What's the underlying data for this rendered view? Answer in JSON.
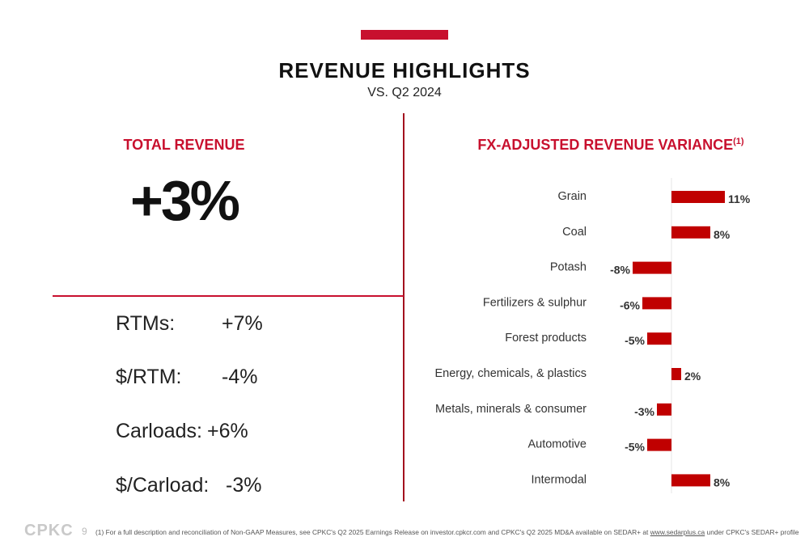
{
  "header": {
    "title": "REVENUE HIGHLIGHTS",
    "subtitle": "VS. Q2 2024"
  },
  "total_revenue": {
    "label": "TOTAL REVENUE",
    "value": "+3%"
  },
  "metrics": [
    {
      "label": "RTMs:",
      "value": "+7%"
    },
    {
      "label": "$/RTM:",
      "value": "-4%"
    },
    {
      "label": "Carloads:",
      "value": "+6%"
    },
    {
      "label": "$/Carload:",
      "value": "-3%"
    }
  ],
  "chart_data": {
    "type": "bar",
    "orientation": "horizontal",
    "title": "FX-ADJUSTED REVENUE VARIANCE",
    "title_footnote": "(1)",
    "categories": [
      "Grain",
      "Coal",
      "Potash",
      "Fertilizers & sulphur",
      "Forest products",
      "Energy, chemicals, & plastics",
      "Metals, minerals & consumer",
      "Automotive",
      "Intermodal"
    ],
    "values": [
      11,
      8,
      -8,
      -6,
      -5,
      2,
      -3,
      -5,
      8
    ],
    "data_labels": [
      "11%",
      "8%",
      "-8%",
      "-6%",
      "-5%",
      "2%",
      "-3%",
      "-5%",
      "8%"
    ],
    "unit": "%",
    "bar_color": "#c00000",
    "grid": false
  },
  "footer": {
    "logo": "CPKC",
    "page": "9",
    "note_pre": "(1) For a full description and reconciliation of Non-GAAP Measures, see CPKC's Q2 2025 Earnings Release on investor.cpkcr.com and CPKC's Q2 2025 MD&A available on SEDAR+ at ",
    "note_link": "www.sedarplus.ca",
    "note_post": " under CPKC's SEDAR+ profile"
  },
  "colors": {
    "accent": "#c8102e",
    "bar": "#c00000"
  }
}
